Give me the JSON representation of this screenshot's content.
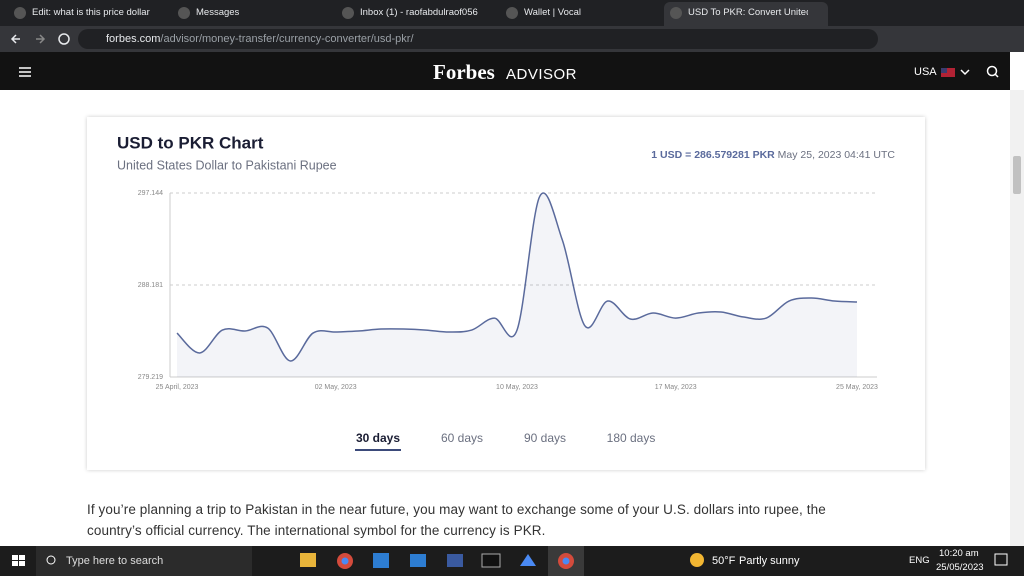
{
  "browser": {
    "tabs": [
      "Edit: what is this price dollar",
      "Messages",
      "Inbox (1) - raofabdulraof056",
      "Wallet | Vocal",
      "USD To PKR: Convert United"
    ],
    "active_tab": 4,
    "url_host": "forbes.com",
    "url_path": "/advisor/money-transfer/currency-converter/usd-pkr/"
  },
  "site": {
    "logo": "Forbes",
    "logo_sub": "ADVISOR",
    "region": "USA"
  },
  "chart_data": {
    "type": "line",
    "title": "USD to PKR Chart",
    "subtitle": "United States Dollar to Pakistani Rupee",
    "rate_label": "1 USD = 286.579281 PKR",
    "timestamp": "May 25, 2023 04:41 UTC",
    "categories": [
      "25 April, 2023",
      null,
      null,
      null,
      null,
      null,
      null,
      "02 May, 2023",
      null,
      null,
      null,
      null,
      null,
      null,
      null,
      "10 May, 2023",
      null,
      null,
      null,
      null,
      null,
      null,
      "17 May, 2023",
      null,
      null,
      null,
      null,
      null,
      null,
      null,
      "25 May, 2023"
    ],
    "series": [
      {
        "color": "#5a6a9c",
        "values": [
          283.5,
          281.56,
          283.79,
          283.7,
          283.99,
          280.78,
          283.5,
          283.6,
          283.7,
          283.89,
          283.89,
          283.79,
          283.6,
          283.79,
          284.96,
          283.79,
          296.8,
          292.56,
          284.19,
          286.62,
          284.87,
          285.45,
          284.96,
          285.45,
          285.55,
          285.06,
          284.96,
          286.62,
          286.91,
          286.62,
          286.52
        ]
      }
    ],
    "ylim": [
      279.219,
      297.144
    ],
    "yticks": [
      279.219,
      288.181,
      297.144
    ],
    "grid": true,
    "periods": [
      "30 days",
      "60 days",
      "90 days",
      "180 days"
    ],
    "active_period": 0
  },
  "article": {
    "lines": [
      "If you’re planning a trip to Pakistan in the near future, you may want to exchange some of your U.S. dollars into rupee, the",
      "country’s official currency. The international symbol for the currency is PKR."
    ]
  },
  "taskbar": {
    "search": "Type here to search",
    "temperature": "50°F",
    "weather": "Partly sunny",
    "language": "ENG",
    "time": "10:20 am",
    "date": "25/05/2023"
  }
}
